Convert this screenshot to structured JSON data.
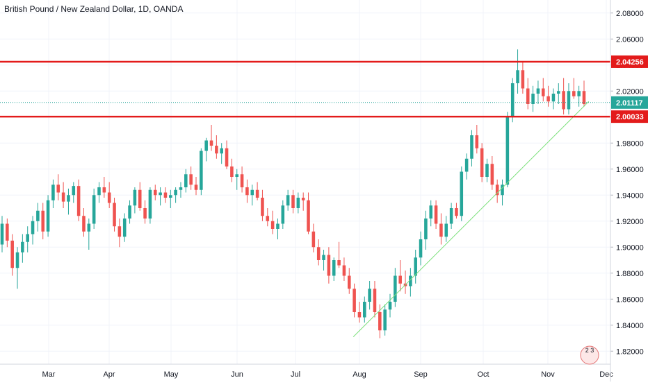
{
  "chart_data": {
    "type": "candlestick",
    "title": "British Pound / New Zealand Dollar, 1D, OANDA",
    "ylim": [
      1.81,
      2.09
    ],
    "y_ticks": [
      "1.82000",
      "1.84000",
      "1.86000",
      "1.88000",
      "1.90000",
      "1.92000",
      "1.94000",
      "1.96000",
      "1.98000",
      "2.00000",
      "2.02000",
      "2.04000",
      "2.06000",
      "2.08000"
    ],
    "x_ticks": [
      "Mar",
      "Apr",
      "May",
      "Jun",
      "Jul",
      "Aug",
      "Sep",
      "Oct",
      "Nov",
      "Dec"
    ],
    "horizontal_levels": [
      {
        "label": "2.04256",
        "value": 2.04256,
        "color": "#e31b1b"
      },
      {
        "label": "2.00033",
        "value": 2.00033,
        "color": "#e31b1b"
      }
    ],
    "last_price": {
      "label": "2.01117",
      "value": 2.01117,
      "color": "#26a69a"
    },
    "trendline": {
      "from": {
        "date": "2019-07-29",
        "price": 1.831
      },
      "to": {
        "date": "2019-11-22",
        "price": 2.012
      },
      "color": "#7be07b"
    },
    "colors": {
      "up": "#26a69a",
      "down": "#ef5350",
      "grid": "#f0f3fa",
      "axis_text": "#131722"
    },
    "badge": "2 3",
    "candles": [
      [
        1.902,
        1.924,
        1.896,
        1.918
      ],
      [
        1.918,
        1.922,
        1.9,
        1.905
      ],
      [
        1.905,
        1.91,
        1.878,
        1.884
      ],
      [
        1.884,
        1.9,
        1.868,
        1.896
      ],
      [
        1.896,
        1.91,
        1.888,
        1.904
      ],
      [
        1.904,
        1.916,
        1.896,
        1.91
      ],
      [
        1.91,
        1.924,
        1.902,
        1.92
      ],
      [
        1.92,
        1.934,
        1.912,
        1.928
      ],
      [
        1.928,
        1.934,
        1.906,
        1.912
      ],
      [
        1.912,
        1.94,
        1.908,
        1.936
      ],
      [
        1.936,
        1.952,
        1.93,
        1.948
      ],
      [
        1.948,
        1.956,
        1.936,
        1.942
      ],
      [
        1.942,
        1.95,
        1.93,
        1.935
      ],
      [
        1.935,
        1.945,
        1.925,
        1.94
      ],
      [
        1.94,
        1.95,
        1.934,
        1.947
      ],
      [
        1.947,
        1.952,
        1.92,
        1.924
      ],
      [
        1.924,
        1.93,
        1.908,
        1.912
      ],
      [
        1.912,
        1.922,
        1.898,
        1.918
      ],
      [
        1.918,
        1.945,
        1.914,
        1.94
      ],
      [
        1.94,
        1.95,
        1.934,
        1.946
      ],
      [
        1.946,
        1.954,
        1.938,
        1.942
      ],
      [
        1.942,
        1.95,
        1.93,
        1.934
      ],
      [
        1.934,
        1.938,
        1.912,
        1.916
      ],
      [
        1.916,
        1.922,
        1.9,
        1.908
      ],
      [
        1.908,
        1.926,
        1.904,
        1.922
      ],
      [
        1.922,
        1.936,
        1.918,
        1.932
      ],
      [
        1.932,
        1.946,
        1.926,
        1.944
      ],
      [
        1.944,
        1.95,
        1.928,
        1.93
      ],
      [
        1.93,
        1.936,
        1.918,
        1.922
      ],
      [
        1.922,
        1.946,
        1.918,
        1.944
      ],
      [
        1.944,
        1.948,
        1.936,
        1.94
      ],
      [
        1.94,
        1.946,
        1.932,
        1.942
      ],
      [
        1.942,
        1.946,
        1.934,
        1.938
      ],
      [
        1.938,
        1.944,
        1.93,
        1.94
      ],
      [
        1.94,
        1.946,
        1.934,
        1.944
      ],
      [
        1.944,
        1.95,
        1.938,
        1.946
      ],
      [
        1.946,
        1.96,
        1.942,
        1.956
      ],
      [
        1.956,
        1.962,
        1.944,
        1.948
      ],
      [
        1.948,
        1.954,
        1.94,
        1.944
      ],
      [
        1.944,
        1.976,
        1.94,
        1.974
      ],
      [
        1.974,
        1.984,
        1.966,
        1.982
      ],
      [
        1.982,
        1.994,
        1.974,
        1.978
      ],
      [
        1.978,
        1.986,
        1.968,
        1.972
      ],
      [
        1.972,
        1.98,
        1.964,
        1.976
      ],
      [
        1.976,
        1.982,
        1.96,
        1.962
      ],
      [
        1.962,
        1.968,
        1.95,
        1.954
      ],
      [
        1.954,
        1.96,
        1.944,
        1.956
      ],
      [
        1.956,
        1.962,
        1.942,
        1.946
      ],
      [
        1.946,
        1.952,
        1.934,
        1.94
      ],
      [
        1.94,
        1.948,
        1.932,
        1.944
      ],
      [
        1.944,
        1.95,
        1.936,
        1.938
      ],
      [
        1.938,
        1.944,
        1.92,
        1.924
      ],
      [
        1.924,
        1.93,
        1.916,
        1.92
      ],
      [
        1.92,
        1.928,
        1.91,
        1.914
      ],
      [
        1.914,
        1.922,
        1.906,
        1.918
      ],
      [
        1.918,
        1.936,
        1.914,
        1.932
      ],
      [
        1.932,
        1.944,
        1.928,
        1.94
      ],
      [
        1.94,
        1.944,
        1.926,
        1.93
      ],
      [
        1.93,
        1.942,
        1.926,
        1.938
      ],
      [
        1.938,
        1.942,
        1.928,
        1.936
      ],
      [
        1.936,
        1.942,
        1.91,
        1.912
      ],
      [
        1.912,
        1.918,
        1.896,
        1.9
      ],
      [
        1.9,
        1.906,
        1.886,
        1.89
      ],
      [
        1.89,
        1.898,
        1.882,
        1.894
      ],
      [
        1.894,
        1.9,
        1.872,
        1.878
      ],
      [
        1.878,
        1.892,
        1.874,
        1.89
      ],
      [
        1.89,
        1.904,
        1.884,
        1.886
      ],
      [
        1.886,
        1.892,
        1.874,
        1.878
      ],
      [
        1.878,
        1.884,
        1.864,
        1.868
      ],
      [
        1.868,
        1.872,
        1.846,
        1.85
      ],
      [
        1.85,
        1.858,
        1.842,
        1.846
      ],
      [
        1.846,
        1.862,
        1.842,
        1.858
      ],
      [
        1.858,
        1.874,
        1.852,
        1.868
      ],
      [
        1.868,
        1.874,
        1.846,
        1.85
      ],
      [
        1.85,
        1.856,
        1.83,
        1.836
      ],
      [
        1.836,
        1.856,
        1.832,
        1.852
      ],
      [
        1.852,
        1.864,
        1.846,
        1.858
      ],
      [
        1.858,
        1.884,
        1.854,
        1.878
      ],
      [
        1.878,
        1.89,
        1.866,
        1.872
      ],
      [
        1.872,
        1.882,
        1.864,
        1.87
      ],
      [
        1.87,
        1.884,
        1.862,
        1.878
      ],
      [
        1.878,
        1.898,
        1.872,
        1.892
      ],
      [
        1.892,
        1.912,
        1.886,
        1.906
      ],
      [
        1.906,
        1.928,
        1.898,
        1.922
      ],
      [
        1.922,
        1.936,
        1.916,
        1.932
      ],
      [
        1.932,
        1.936,
        1.914,
        1.918
      ],
      [
        1.918,
        1.926,
        1.902,
        1.908
      ],
      [
        1.908,
        1.924,
        1.904,
        1.918
      ],
      [
        1.918,
        1.934,
        1.914,
        1.93
      ],
      [
        1.93,
        1.934,
        1.922,
        1.924
      ],
      [
        1.924,
        1.962,
        1.92,
        1.958
      ],
      [
        1.958,
        1.972,
        1.952,
        1.968
      ],
      [
        1.968,
        1.99,
        1.962,
        1.986
      ],
      [
        1.986,
        1.994,
        1.972,
        1.976
      ],
      [
        1.976,
        1.98,
        1.95,
        1.954
      ],
      [
        1.954,
        1.968,
        1.95,
        1.964
      ],
      [
        1.964,
        1.97,
        1.944,
        1.948
      ],
      [
        1.948,
        1.952,
        1.934,
        1.94
      ],
      [
        1.94,
        1.952,
        1.932,
        1.948
      ],
      [
        1.948,
        2.004,
        1.946,
        2.0
      ],
      [
        2.0,
        2.03,
        1.996,
        2.026
      ],
      [
        2.026,
        2.052,
        2.018,
        2.036
      ],
      [
        2.036,
        2.042,
        2.018,
        2.022
      ],
      [
        2.022,
        2.03,
        2.006,
        2.01
      ],
      [
        2.01,
        2.024,
        2.004,
        2.018
      ],
      [
        2.018,
        2.028,
        2.01,
        2.022
      ],
      [
        2.022,
        2.03,
        2.012,
        2.016
      ],
      [
        2.016,
        2.024,
        2.008,
        2.012
      ],
      [
        2.012,
        2.022,
        2.006,
        2.018
      ],
      [
        2.018,
        2.026,
        2.01,
        2.02
      ],
      [
        2.02,
        2.03,
        2.002,
        2.006
      ],
      [
        2.006,
        2.026,
        2.002,
        2.02
      ],
      [
        2.02,
        2.03,
        2.014,
        2.016
      ],
      [
        2.016,
        2.024,
        2.008,
        2.02
      ],
      [
        2.02,
        2.028,
        2.008,
        2.01
      ]
    ]
  }
}
